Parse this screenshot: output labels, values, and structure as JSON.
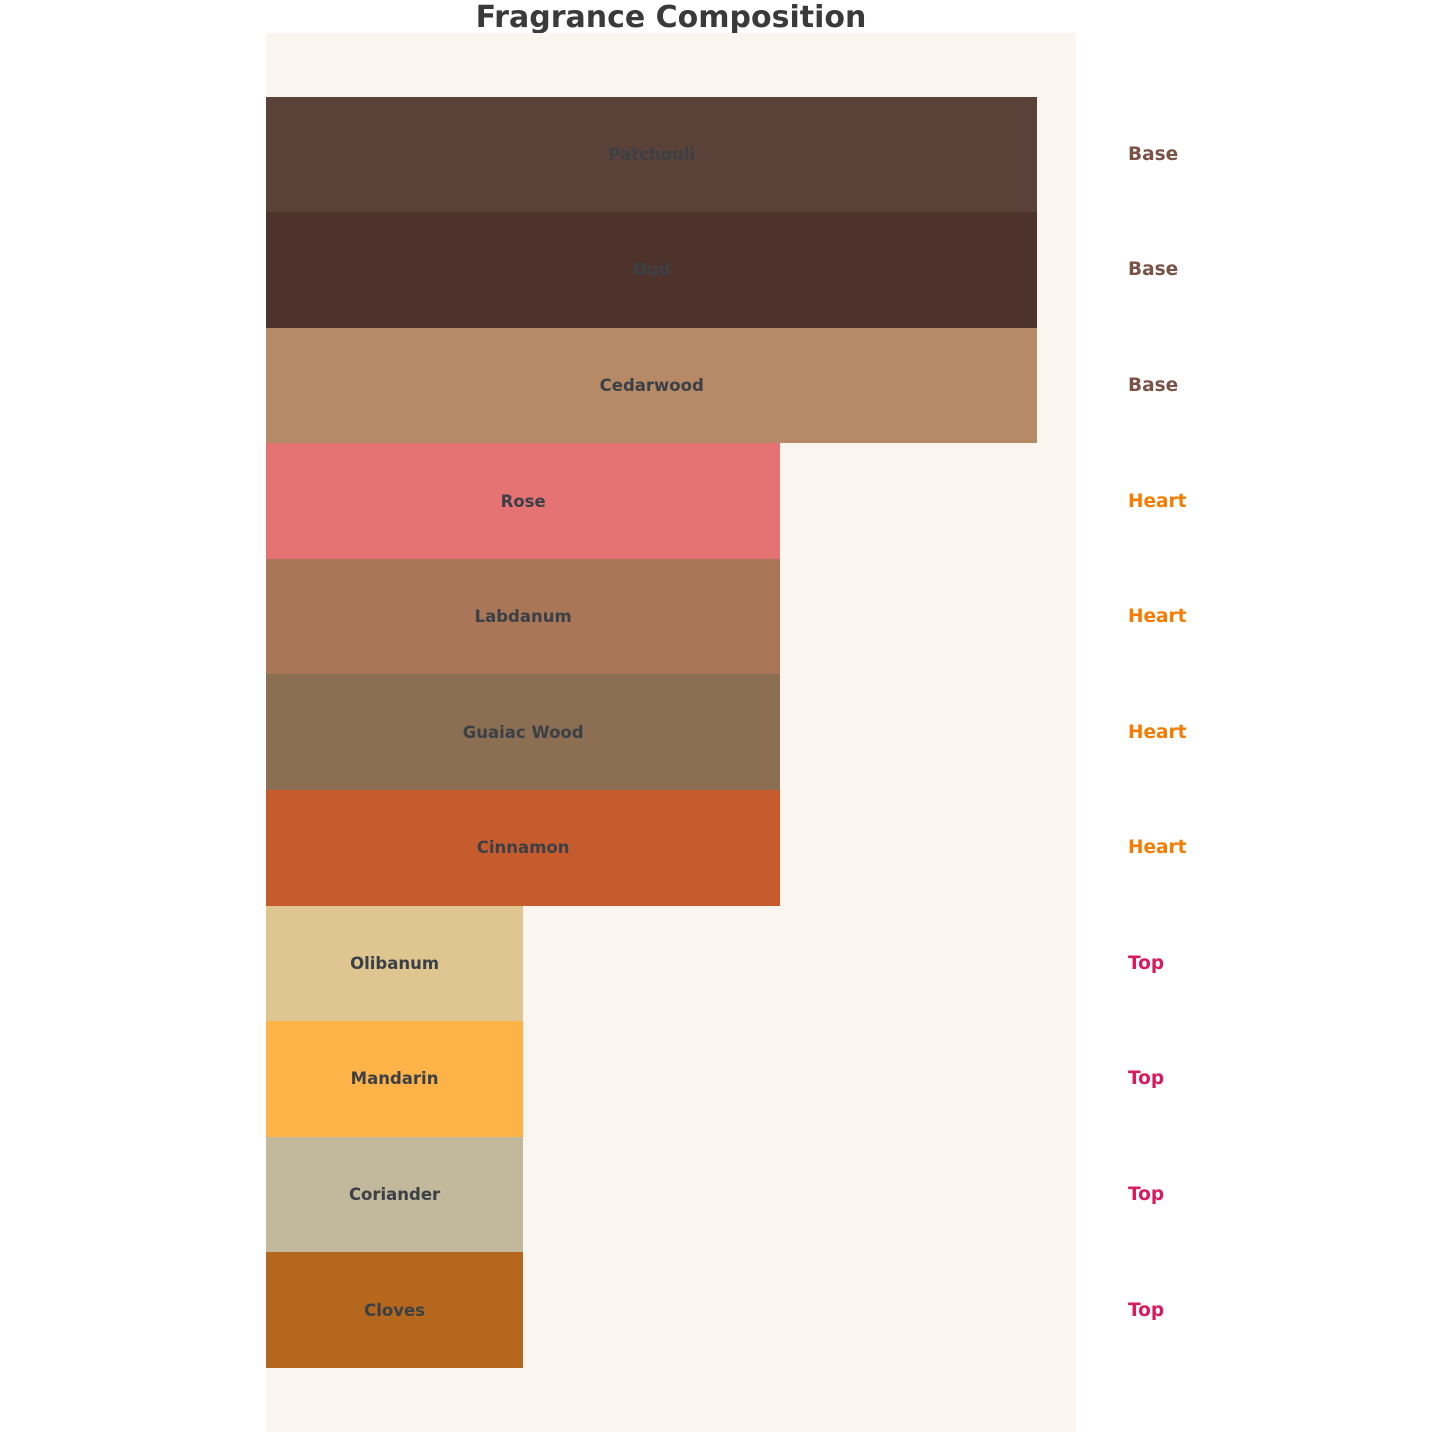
{
  "title": "Fragrance Composition",
  "colors": {
    "page_bg": "#ffffff",
    "plot_bg": "#faf5ef",
    "title_text": "#3a3a3a",
    "bar_label_text": "#3b4046",
    "note_type_colors": {
      "Base": "#7a5246",
      "Heart": "#f57c00",
      "Top": "#d81b60"
    }
  },
  "chart_data": {
    "type": "bar",
    "orientation": "horizontal",
    "title": "Fragrance Composition",
    "xlabel": "",
    "ylabel": "",
    "xlim": [
      0,
      3.15
    ],
    "grid": false,
    "axes_visible": false,
    "legend": "none",
    "categories": [
      "Patchouli",
      "Oud",
      "Cedarwood",
      "Rose",
      "Labdanum",
      "Guaiac Wood",
      "Cinnamon",
      "Olibanum",
      "Mandarin",
      "Coriander",
      "Cloves"
    ],
    "values": [
      3,
      3,
      3,
      2,
      2,
      2,
      2,
      1,
      1,
      1,
      1
    ],
    "right_annotations": [
      "Base",
      "Base",
      "Base",
      "Heart",
      "Heart",
      "Heart",
      "Heart",
      "Top",
      "Top",
      "Top",
      "Top"
    ],
    "items": [
      {
        "name": "Patchouli",
        "note_type": "Base",
        "value": 3,
        "color": "#5b4238"
      },
      {
        "name": "Oud",
        "note_type": "Base",
        "value": 3,
        "color": "#4d332c"
      },
      {
        "name": "Cedarwood",
        "note_type": "Base",
        "value": 3,
        "color": "#b78a67"
      },
      {
        "name": "Rose",
        "note_type": "Heart",
        "value": 2,
        "color": "#e57373"
      },
      {
        "name": "Labdanum",
        "note_type": "Heart",
        "value": 2,
        "color": "#a97658"
      },
      {
        "name": "Guaiac Wood",
        "note_type": "Heart",
        "value": 2,
        "color": "#8c6f52"
      },
      {
        "name": "Cinnamon",
        "note_type": "Heart",
        "value": 2,
        "color": "#c65b2d"
      },
      {
        "name": "Olibanum",
        "note_type": "Top",
        "value": 1,
        "color": "#dfc58f"
      },
      {
        "name": "Mandarin",
        "note_type": "Top",
        "value": 1,
        "color": "#fdb348"
      },
      {
        "name": "Coriander",
        "note_type": "Top",
        "value": 1,
        "color": "#c2b89b"
      },
      {
        "name": "Cloves",
        "note_type": "Top",
        "value": 1,
        "color": "#b4671d"
      }
    ]
  }
}
